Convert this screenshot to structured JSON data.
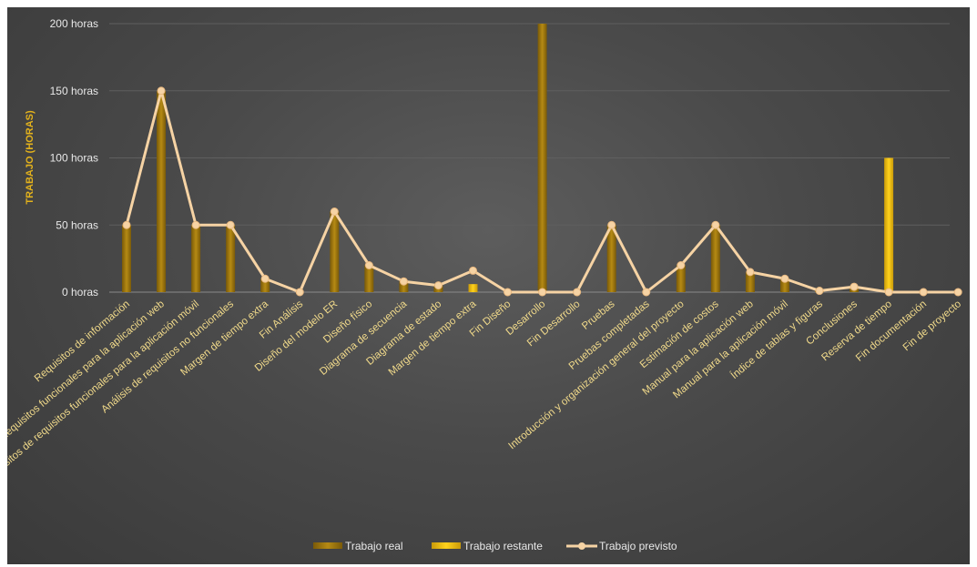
{
  "chart_data": {
    "type": "bar",
    "ylabel": "TRABAJO (HORAS)",
    "ylim": [
      0,
      200
    ],
    "yticks": [
      {
        "value": 0,
        "label": "0 horas"
      },
      {
        "value": 50,
        "label": "50 horas"
      },
      {
        "value": 100,
        "label": "100 horas"
      },
      {
        "value": 150,
        "label": "150 horas"
      },
      {
        "value": 200,
        "label": "200 horas"
      }
    ],
    "grid": true,
    "legend_position": "bottom",
    "categories": [
      "Requisitos de información",
      "Requisitos funcionales para la aplicación web",
      "Requisitos de requisitos funcionales para la aplicación móvil",
      "Análisis de requisitos no funcionales",
      "Margen de tiempo extra",
      "Fin Análisis",
      "Diseño del modelo ER",
      "Diseño físico",
      "Diagrama de secuencia",
      "Diagrama de estado",
      "Margen de tiempo extra",
      "Fin Diseño",
      "Desarrollo",
      "Fin Desarrollo",
      "Pruebas",
      "Pruebas completadas",
      "Introducción y organización general del proyecto",
      "Estimación de costos",
      "Manual para la aplicación web",
      "Manual para la aplicación móvil",
      "Índice de tablas y figuras",
      "Conclusiones",
      "Reserva de tiempo",
      "Fin documentación",
      "Fin de proyecto"
    ],
    "series": [
      {
        "name": "Trabajo real",
        "kind": "bar",
        "color": "#a87d10",
        "values": [
          50,
          150,
          50,
          50,
          10,
          0,
          60,
          20,
          8,
          5,
          0,
          0,
          200,
          0,
          50,
          0,
          20,
          50,
          15,
          10,
          1,
          4,
          0,
          0,
          0
        ]
      },
      {
        "name": "Trabajo restante",
        "kind": "bar",
        "color": "#f0c010",
        "values": [
          0,
          0,
          0,
          0,
          0,
          0,
          0,
          0,
          0,
          0,
          6,
          0,
          0,
          0,
          0,
          0,
          0,
          0,
          0,
          0,
          0,
          0,
          100,
          0,
          0
        ]
      },
      {
        "name": "Trabajo previsto",
        "kind": "line",
        "color": "#f6d3a4",
        "values": [
          50,
          150,
          50,
          50,
          10,
          0,
          60,
          20,
          8,
          5,
          16,
          0,
          0,
          0,
          50,
          0,
          20,
          50,
          15,
          10,
          1,
          4,
          0,
          0,
          0
        ]
      }
    ]
  }
}
